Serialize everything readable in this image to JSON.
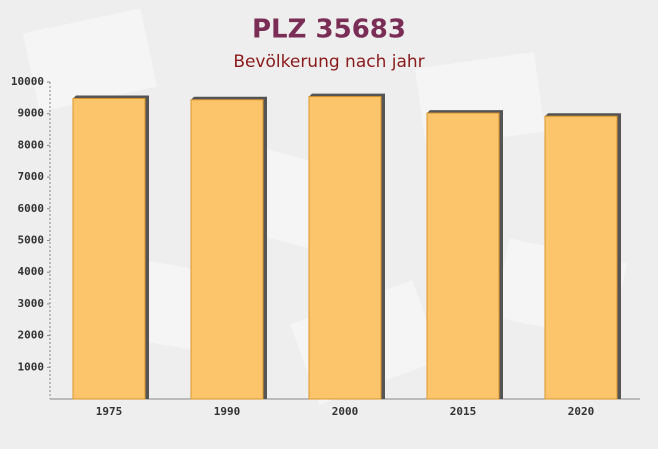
{
  "chart_data": {
    "type": "bar",
    "title": "PLZ 35683",
    "subtitle": "Bevölkerung nach jahr",
    "categories": [
      "1975",
      "1990",
      "2000",
      "2015",
      "2020"
    ],
    "values": [
      9480,
      9440,
      9540,
      9020,
      8920
    ],
    "color": "#fdc56b",
    "ylim": [
      0,
      10000
    ],
    "yticks": [
      1000,
      2000,
      3000,
      4000,
      5000,
      6000,
      7000,
      8000,
      9000,
      10000
    ],
    "grid": false
  }
}
